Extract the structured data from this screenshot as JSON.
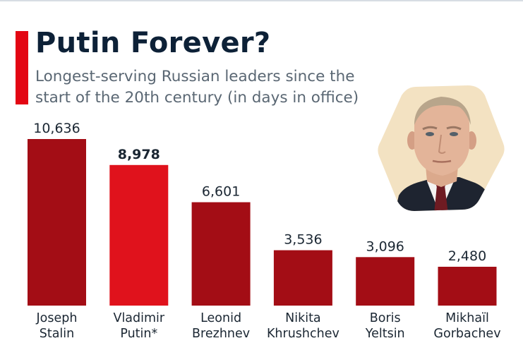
{
  "header": {
    "title": "Putin Forever?",
    "subtitle": "Longest-serving Russian leaders since the start of the 20th century (in days in office)"
  },
  "colors": {
    "bar": "#a30d15",
    "highlight_bar": "#e0121c",
    "accent": "#e30613",
    "title": "#0d2137",
    "subtitle": "#5a6773",
    "text": "#1b2733"
  },
  "chart_data": {
    "type": "bar",
    "title": "Putin Forever?",
    "subtitle": "Longest-serving Russian leaders since the start of the 20th century (in days in office)",
    "categories": [
      [
        "Joseph",
        "Stalin"
      ],
      [
        "Vladimir",
        "Putin*"
      ],
      [
        "Leonid",
        "Brezhnev"
      ],
      [
        "Nikita",
        "Khrushchev"
      ],
      [
        "Boris",
        "Yeltsin"
      ],
      [
        "Mikhaïl",
        "Gorbachev"
      ]
    ],
    "values": [
      10636,
      8978,
      6601,
      3536,
      3096,
      2480
    ],
    "value_labels": [
      "10,636",
      "8,978",
      "6,601",
      "3,536",
      "3,096",
      "2,480"
    ],
    "highlight_index": 1,
    "ylim": [
      0,
      10636
    ],
    "grid": false,
    "legend": "none"
  },
  "portrait": {
    "icon": "vladimir-putin-portrait"
  }
}
